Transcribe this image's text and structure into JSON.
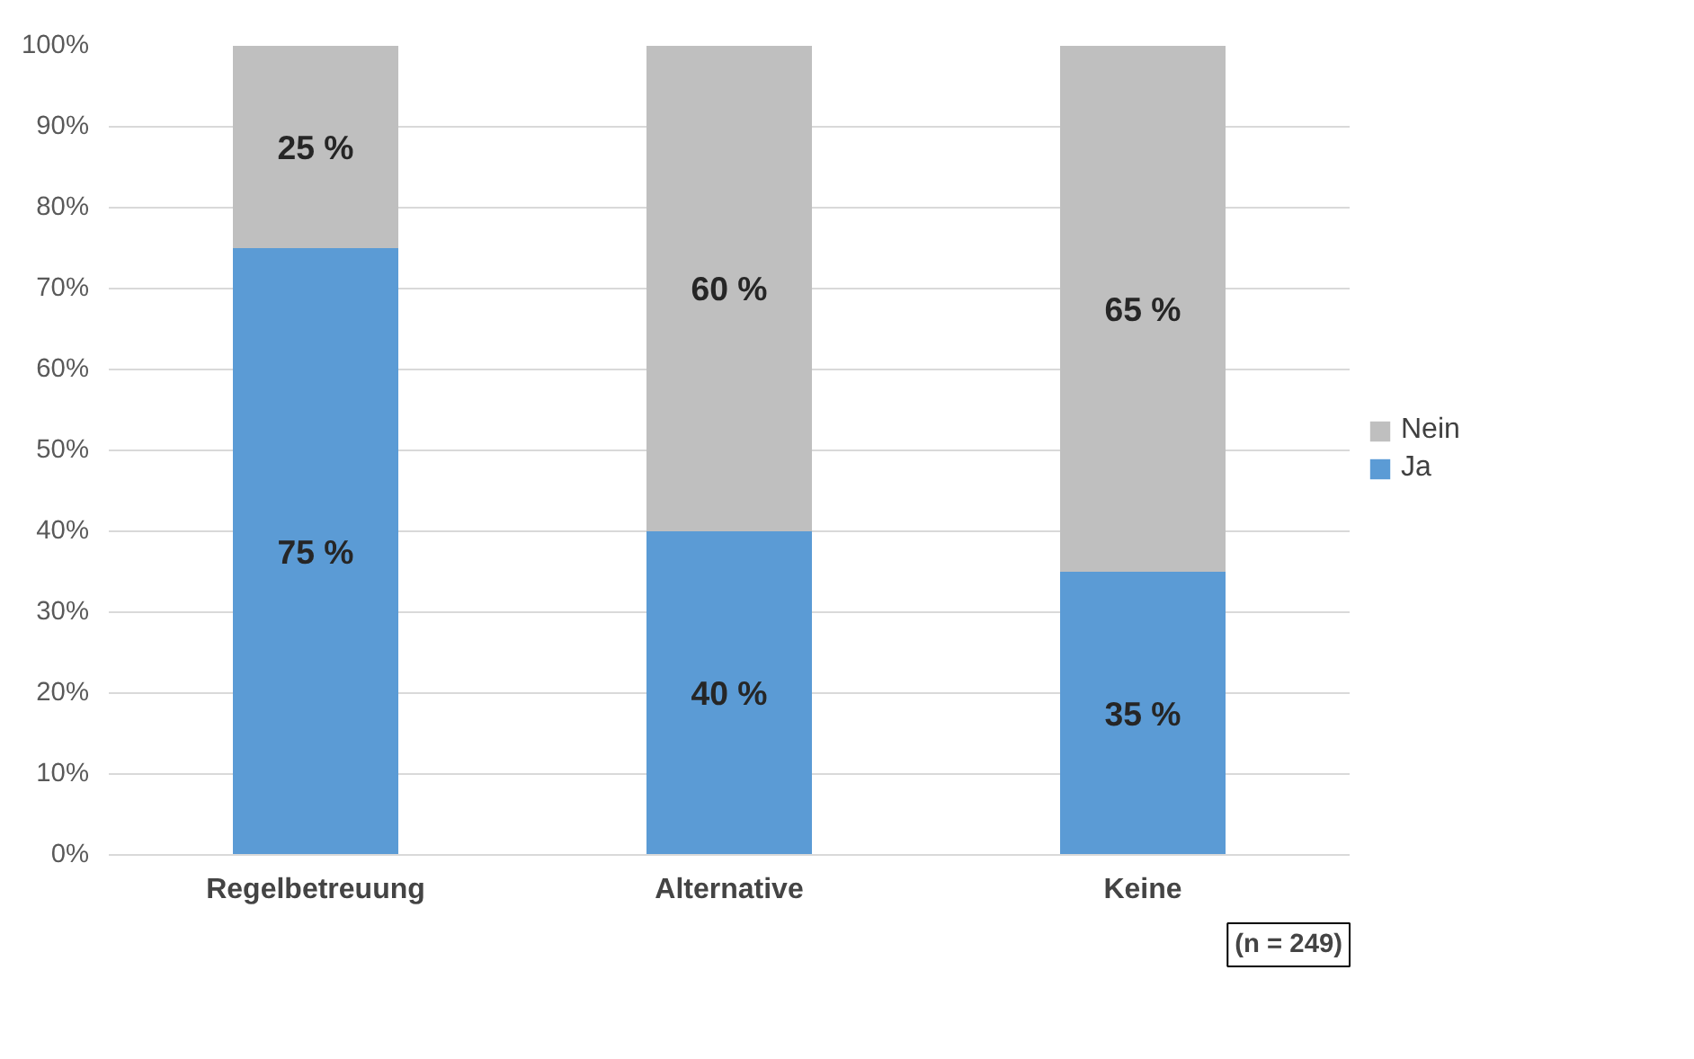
{
  "chart_data": {
    "type": "bar",
    "stacked": true,
    "categories": [
      "Regelbetreuung",
      "Alternative",
      "Keine"
    ],
    "series": [
      {
        "name": "Ja",
        "color": "#5b9bd5",
        "values": [
          75,
          40,
          35
        ],
        "value_labels": [
          "75 %",
          "40 %",
          "35 %"
        ]
      },
      {
        "name": "Nein",
        "color": "#bfbfbf",
        "values": [
          25,
          60,
          65
        ],
        "value_labels": [
          "25 %",
          "60 %",
          "65 %"
        ]
      }
    ],
    "ylim": [
      0,
      100
    ],
    "yticks": [
      {
        "value": 0,
        "label": "0%"
      },
      {
        "value": 10,
        "label": "10%"
      },
      {
        "value": 20,
        "label": "20%"
      },
      {
        "value": 30,
        "label": "30%"
      },
      {
        "value": 40,
        "label": "40%"
      },
      {
        "value": 50,
        "label": "50%"
      },
      {
        "value": 60,
        "label": "60%"
      },
      {
        "value": 70,
        "label": "70%"
      },
      {
        "value": 80,
        "label": "80%"
      },
      {
        "value": 90,
        "label": "90%"
      },
      {
        "value": 100,
        "label": "100%"
      }
    ],
    "grid": "y",
    "legend": "right",
    "annotations": [
      "(n = 249)"
    ]
  }
}
